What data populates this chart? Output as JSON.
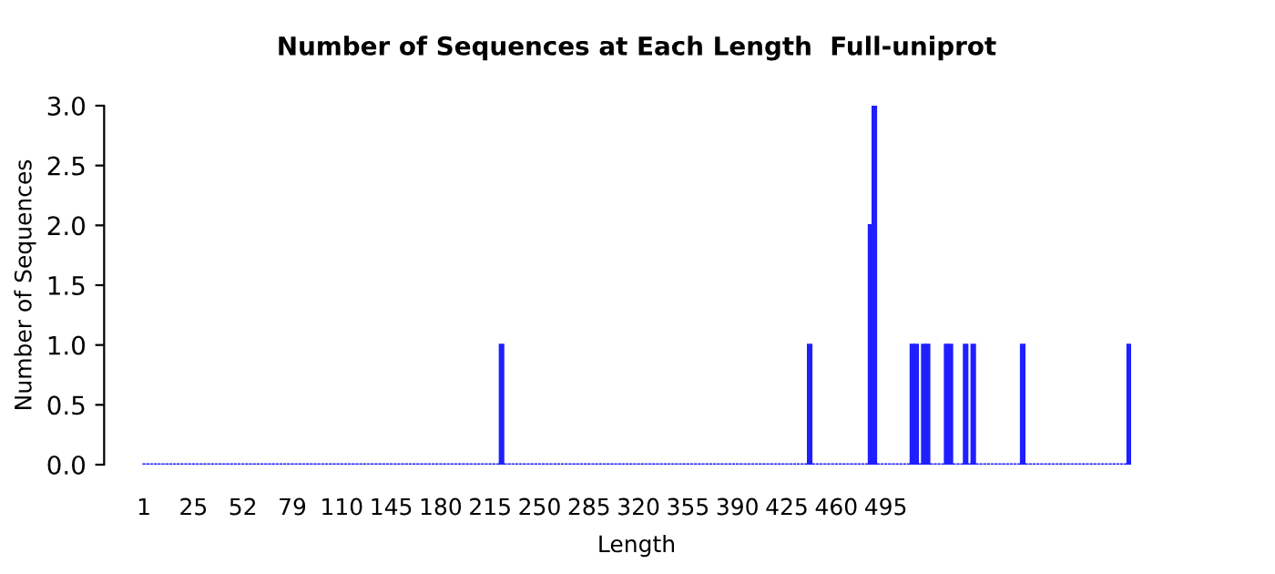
{
  "chart_data": {
    "type": "bar",
    "title": "Number of Sequences at Each Length  Full-uniprot",
    "xlabel": "Length",
    "ylabel": "Number of Sequences",
    "color": "#1f1fff",
    "categories": [
      "1",
      null,
      null,
      null,
      null,
      null,
      null,
      null,
      null,
      null,
      null,
      null,
      null,
      "25",
      null,
      null,
      null,
      null,
      null,
      null,
      null,
      null,
      null,
      null,
      null,
      null,
      "52",
      null,
      null,
      null,
      null,
      null,
      null,
      null,
      null,
      null,
      null,
      null,
      null,
      "79",
      null,
      null,
      null,
      null,
      null,
      null,
      null,
      null,
      null,
      null,
      null,
      null,
      "110",
      null,
      null,
      null,
      null,
      null,
      null,
      null,
      null,
      null,
      null,
      null,
      null,
      "145",
      null,
      null,
      null,
      null,
      null,
      null,
      null,
      null,
      null,
      null,
      null,
      null,
      "180",
      null,
      null,
      null,
      null,
      null,
      null,
      null,
      null,
      null,
      null,
      null,
      null,
      "215",
      null,
      null,
      null,
      null,
      null,
      null,
      null,
      null,
      null,
      null,
      null,
      null,
      "250",
      null,
      null,
      null,
      null,
      null,
      null,
      null,
      null,
      null,
      null,
      null,
      null,
      "285",
      null,
      null,
      null,
      null,
      null,
      null,
      null,
      null,
      null,
      null,
      null,
      null,
      "320",
      null,
      null,
      null,
      null,
      null,
      null,
      null,
      null,
      null,
      null,
      null,
      null,
      "355",
      null,
      null,
      null,
      null,
      null,
      null,
      null,
      null,
      null,
      null,
      null,
      null,
      "390",
      null,
      null,
      null,
      null,
      null,
      null,
      null,
      null,
      null,
      null,
      null,
      null,
      "425",
      null,
      null,
      null,
      null,
      null,
      null,
      null,
      null,
      null,
      null,
      null,
      null,
      "460",
      null,
      null,
      null,
      null,
      null,
      null,
      null,
      null,
      null,
      null,
      null,
      null,
      "495",
      null,
      null,
      null,
      null,
      null,
      null,
      null,
      null,
      null,
      null,
      null,
      null,
      null,
      null,
      null,
      null,
      null,
      null,
      null,
      null,
      null,
      null,
      null,
      null,
      null,
      null,
      null,
      null,
      null,
      null,
      null,
      null,
      null,
      null,
      null,
      null,
      null,
      null,
      null,
      null,
      null,
      null,
      null,
      null,
      null,
      null,
      null,
      null,
      null,
      null,
      null,
      null,
      null,
      null,
      null,
      null,
      null,
      null,
      null,
      null,
      null,
      null,
      null,
      null
    ],
    "values": [
      0,
      0,
      0,
      0,
      0,
      0,
      0,
      0,
      0,
      0,
      0,
      0,
      0,
      0,
      0,
      0,
      0,
      0,
      0,
      0,
      0,
      0,
      0,
      0,
      0,
      0,
      0,
      0,
      0,
      0,
      0,
      0,
      0,
      0,
      0,
      0,
      0,
      0,
      0,
      0,
      0,
      0,
      0,
      0,
      0,
      0,
      0,
      0,
      0,
      0,
      0,
      0,
      0,
      0,
      0,
      0,
      0,
      0,
      0,
      0,
      0,
      0,
      0,
      0,
      0,
      0,
      0,
      0,
      0,
      0,
      0,
      0,
      0,
      0,
      0,
      0,
      0,
      0,
      0,
      0,
      0,
      0,
      0,
      0,
      0,
      0,
      0,
      0,
      0,
      0,
      0,
      0,
      0,
      0,
      1,
      0,
      0,
      0,
      0,
      0,
      0,
      0,
      0,
      0,
      0,
      0,
      0,
      0,
      0,
      0,
      0,
      0,
      0,
      0,
      0,
      0,
      0,
      0,
      0,
      0,
      0,
      0,
      0,
      0,
      0,
      0,
      0,
      0,
      0,
      0,
      0,
      0,
      0,
      0,
      0,
      0,
      0,
      0,
      0,
      0,
      0,
      0,
      0,
      0,
      0,
      0,
      0,
      0,
      0,
      0,
      0,
      0,
      0,
      0,
      0,
      0,
      0,
      0,
      0,
      0,
      0,
      0,
      0,
      0,
      0,
      0,
      0,
      0,
      0,
      0,
      0,
      0,
      0,
      0,
      0,
      1,
      0,
      0,
      0,
      0,
      0,
      0,
      0,
      0,
      0,
      0,
      0,
      0,
      0,
      0,
      0,
      2,
      3,
      0,
      0,
      0,
      0,
      0,
      0,
      0,
      0,
      0,
      1,
      1,
      0,
      1,
      1,
      0,
      0,
      0,
      0,
      1,
      1,
      0,
      0,
      0,
      1,
      0,
      1,
      0,
      0,
      0,
      0,
      0,
      0,
      0,
      0,
      0,
      0,
      0,
      0,
      1,
      0,
      0,
      0,
      0,
      0,
      0,
      0,
      0,
      0,
      0,
      0,
      0,
      0,
      0,
      0,
      0,
      0,
      0,
      0,
      0,
      0,
      0,
      0,
      0,
      0,
      0,
      0,
      1
    ],
    "ylim": [
      0,
      3
    ],
    "yticks": [
      {
        "value": 0,
        "label": "0.0"
      },
      {
        "value": 0.5,
        "label": "0.5"
      },
      {
        "value": 1,
        "label": "1.0"
      },
      {
        "value": 1.5,
        "label": "1.5"
      },
      {
        "value": 2,
        "label": "2.0"
      },
      {
        "value": 2.5,
        "label": "2.5"
      },
      {
        "value": 3,
        "label": "3.0"
      }
    ],
    "grid": false,
    "legend": false
  }
}
